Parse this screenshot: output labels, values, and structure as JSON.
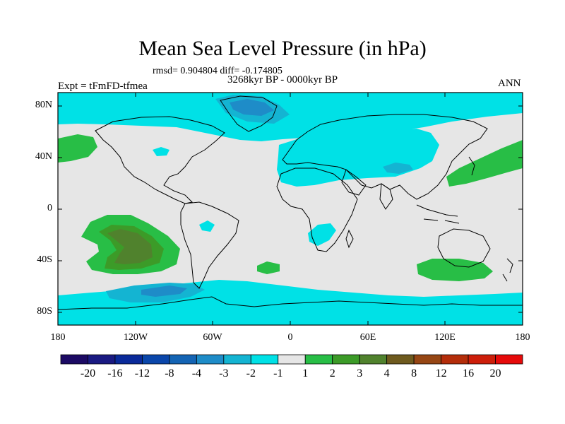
{
  "title": "Mean Sea Level Pressure (in hPa)",
  "stats": "rmsd= 0.904804 diff= -0.174805",
  "period": "3268kyr BP - 0000kyr BP",
  "experiment": "Expt = tFmFD-tfmea",
  "season": "ANN",
  "map": {
    "lat_labels": [
      "80N",
      "40N",
      "0",
      "40S",
      "80S"
    ],
    "lon_labels": [
      "180",
      "120W",
      "60W",
      "0",
      "60E",
      "120E",
      "180"
    ]
  },
  "colorbar": {
    "labels": [
      "-20",
      "-16",
      "-12",
      "-8",
      "-4",
      "-3",
      "-2",
      "-1",
      "1",
      "2",
      "3",
      "4",
      "8",
      "12",
      "16",
      "20"
    ],
    "colors": [
      "#1c0a64",
      "#1a1a82",
      "#0a2a9a",
      "#0a46aa",
      "#1464b4",
      "#1e8cc8",
      "#14b4d2",
      "#00e1e6",
      "#e6e6e6",
      "#28be46",
      "#3c9b28",
      "#50822d",
      "#6e5a1e",
      "#964614",
      "#b42d0a",
      "#cd1e0a",
      "#e60a0a"
    ]
  }
}
